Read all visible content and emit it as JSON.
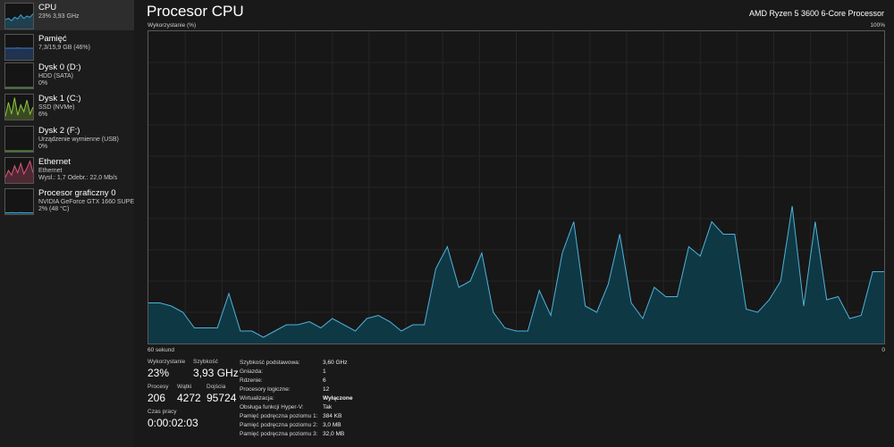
{
  "sidebar": {
    "items": [
      {
        "name": "CPU",
        "line1": "23% 3,93 GHz",
        "line2": "",
        "color": "#3aa6d6",
        "graph": [
          0.35,
          0.4,
          0.3,
          0.45,
          0.38,
          0.55,
          0.4,
          0.5,
          0.45,
          0.6
        ],
        "selected": true
      },
      {
        "name": "Pamięć",
        "line1": "7,3/15,9 GB (46%)",
        "line2": "",
        "color": "#3d7bd6",
        "graph": [
          0.46,
          0.46,
          0.46,
          0.46,
          0.47,
          0.46,
          0.46,
          0.46,
          0.46,
          0.46
        ],
        "selected": false
      },
      {
        "name": "Dysk 0 (D:)",
        "line1": "HDD (SATA)",
        "line2": "0%",
        "color": "#6aa84f",
        "graph": [
          0,
          0,
          0,
          0,
          0,
          0,
          0,
          0,
          0,
          0
        ],
        "selected": false
      },
      {
        "name": "Dysk 1 (C:)",
        "line1": "SSD (NVMe)",
        "line2": "6%",
        "color": "#8fc73e",
        "graph": [
          0.1,
          0.7,
          0.2,
          0.9,
          0.15,
          0.6,
          0.3,
          0.8,
          0.2,
          0.5
        ],
        "selected": false
      },
      {
        "name": "Dysk 2 (F:)",
        "line1": "Urządzenie wymienne (USB)",
        "line2": "0%",
        "color": "#6aa84f",
        "graph": [
          0,
          0,
          0,
          0,
          0,
          0,
          0,
          0,
          0,
          0
        ],
        "selected": false
      },
      {
        "name": "Ethernet",
        "line1": "Ethernet",
        "line2": "Wysł.: 1,7 Odebr.: 22,0 Mb/s",
        "color": "#d9577a",
        "graph": [
          0.2,
          0.5,
          0.3,
          0.7,
          0.4,
          0.8,
          0.35,
          0.6,
          0.9,
          0.4
        ],
        "selected": false
      },
      {
        "name": "Procesor graficzny 0",
        "line1": "NVIDIA GeForce GTX 1660 SUPER",
        "line2": "2% (48 °C)",
        "color": "#3aa6d6",
        "graph": [
          0.02,
          0.02,
          0.03,
          0.02,
          0.02,
          0.03,
          0.02,
          0.02,
          0.02,
          0.02
        ],
        "selected": false
      }
    ]
  },
  "header": {
    "title": "Procesor CPU",
    "processor": "AMD Ryzen 5 3600 6-Core Processor"
  },
  "graph": {
    "y_label": "Wykorzystanie (%)",
    "y_max_label": "100%",
    "x_left_label": "60 sekund",
    "x_right_label": "0",
    "line_color": "#4fb2d8",
    "fill_color": "#0f3845",
    "grid_color": "#262626",
    "values": [
      13,
      13,
      12,
      10,
      5,
      5,
      5,
      16,
      4,
      4,
      2,
      4,
      6,
      6,
      7,
      5,
      8,
      6,
      4,
      8,
      9,
      7,
      4,
      6,
      6,
      24,
      31,
      18,
      20,
      29,
      10,
      5,
      4,
      4,
      17,
      9,
      29,
      39,
      12,
      10,
      19,
      35,
      13,
      8,
      18,
      15,
      15,
      31,
      28,
      39,
      35,
      35,
      11,
      10,
      14,
      20,
      44,
      12,
      39,
      14,
      15,
      8,
      9,
      23,
      23
    ]
  },
  "stats": {
    "utilization": {
      "label": "Wykorzystanie",
      "value": "23%"
    },
    "speed": {
      "label": "Szybkość",
      "value": "3,93 GHz"
    },
    "processes": {
      "label": "Procesy",
      "value": "206"
    },
    "threads": {
      "label": "Wątki",
      "value": "4272"
    },
    "handles": {
      "label": "Dojścia",
      "value": "95724"
    },
    "uptime": {
      "label": "Czas pracy",
      "value": "0:00:02:03"
    }
  },
  "specs": [
    {
      "label": "Szybkość podstawowa:",
      "value": "3,60 GHz",
      "bold": false
    },
    {
      "label": "Gniazda:",
      "value": "1",
      "bold": false
    },
    {
      "label": "Rdzenie:",
      "value": "6",
      "bold": false
    },
    {
      "label": "Procesory logiczne:",
      "value": "12",
      "bold": false
    },
    {
      "label": "Wirtualizacja:",
      "value": "Wyłączone",
      "bold": true
    },
    {
      "label": "Obsługa funkcji Hyper-V:",
      "value": "Tak",
      "bold": false
    },
    {
      "label": "Pamięć podręczna poziomu 1:",
      "value": "384 KB",
      "bold": false
    },
    {
      "label": "Pamięć podręczna poziomu 2:",
      "value": "3,0 MB",
      "bold": false
    },
    {
      "label": "Pamięć podręczna poziomu 3:",
      "value": "32,0 MB",
      "bold": false
    }
  ]
}
